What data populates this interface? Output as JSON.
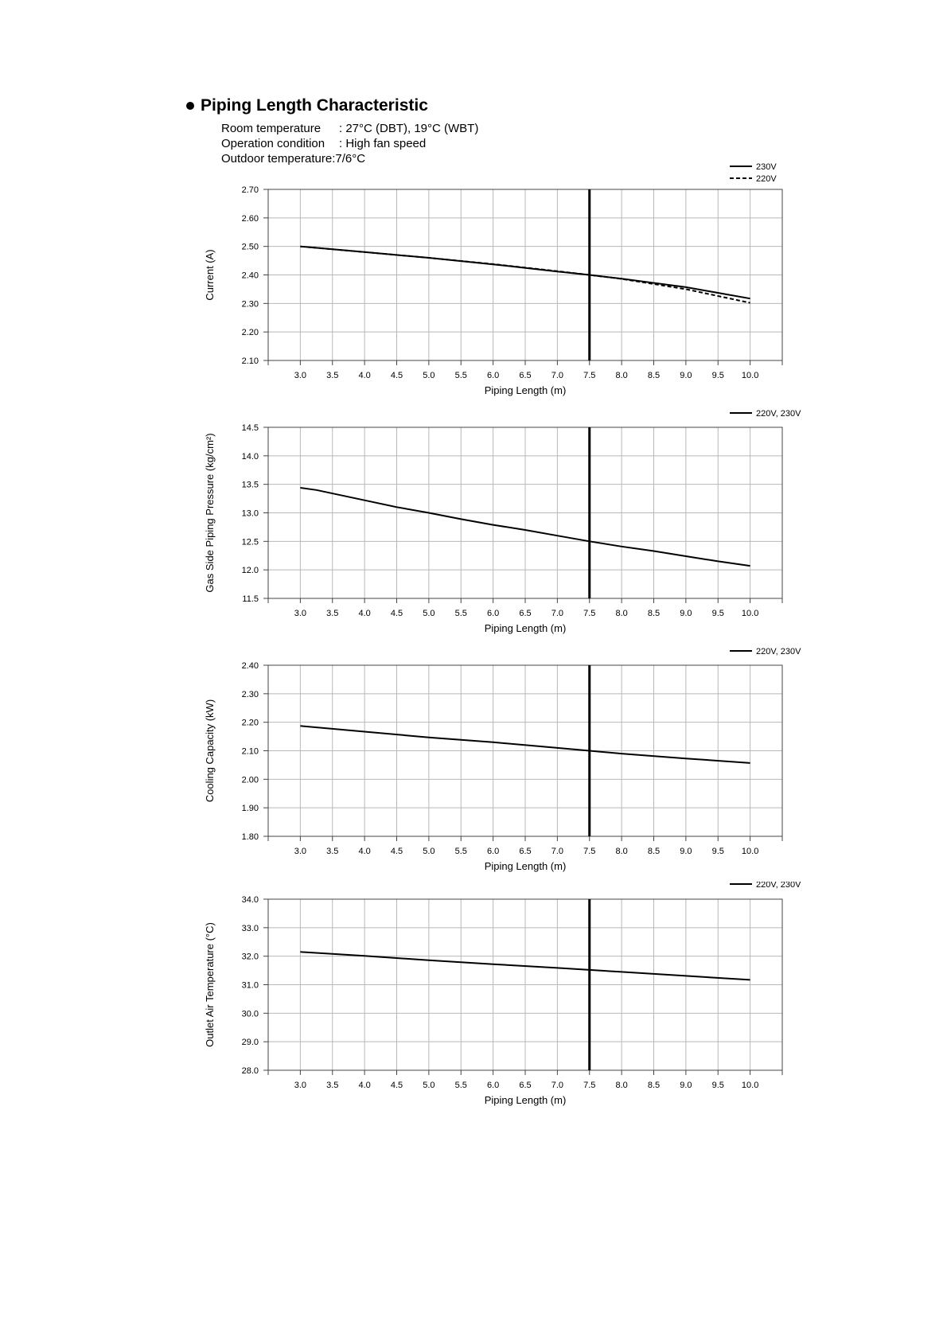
{
  "heading": {
    "title": "Piping Length Characteristic"
  },
  "conditions": [
    {
      "label": "Room temperature",
      "value": ": 27°C (DBT), 19°C (WBT)"
    },
    {
      "label": "Operation condition",
      "value": ": High fan speed"
    },
    {
      "label": "Outdoor temperature:",
      "value": " 7/6°C"
    }
  ],
  "chart_data": [
    {
      "type": "line",
      "title": "",
      "xlabel": "Piping Length (m)",
      "ylabel": "Current (A)",
      "x_ticks": [
        3.0,
        3.5,
        4.0,
        4.5,
        5.0,
        5.5,
        6.0,
        6.5,
        7.0,
        7.5,
        8.0,
        8.5,
        9.0,
        9.5,
        10.0
      ],
      "x_tick_labels": [
        "3.0",
        "3.5",
        "4.0",
        "4.5",
        "5.0",
        "5.5",
        "6.0",
        "6.5",
        "7.0",
        "7.5",
        "8.0",
        "8.5",
        "9.0",
        "9.5",
        "10.0"
      ],
      "xlim": [
        2.5,
        10.5
      ],
      "ylim": [
        2.1,
        2.7
      ],
      "y_ticks": [
        2.1,
        2.2,
        2.3,
        2.4,
        2.5,
        2.6,
        2.7
      ],
      "y_tick_labels": [
        "2.10",
        "2.20",
        "2.30",
        "2.40",
        "2.50",
        "2.60",
        "2.70"
      ],
      "reference_x": 7.5,
      "grid": true,
      "legend_position": "top-right",
      "series": [
        {
          "name": "230V",
          "style": "solid",
          "x": [
            3.0,
            4.0,
            5.0,
            6.0,
            7.0,
            7.5,
            8.0,
            9.0,
            10.0
          ],
          "y": [
            2.5,
            2.48,
            2.46,
            2.437,
            2.412,
            2.4,
            2.387,
            2.357,
            2.317
          ]
        },
        {
          "name": "220V",
          "style": "dashed",
          "x": [
            3.0,
            4.0,
            5.0,
            6.0,
            7.0,
            7.5,
            8.0,
            9.0,
            10.0
          ],
          "y": [
            2.5,
            2.48,
            2.46,
            2.438,
            2.413,
            2.4,
            2.386,
            2.35,
            2.302
          ]
        }
      ]
    },
    {
      "type": "line",
      "title": "",
      "xlabel": "Piping Length (m)",
      "ylabel": "Gas Side Piping Pressure (kg/cm²)",
      "x_ticks": [
        3.0,
        3.5,
        4.0,
        4.5,
        5.0,
        5.5,
        6.0,
        6.5,
        7.0,
        7.5,
        8.0,
        8.5,
        9.0,
        9.5,
        10.0
      ],
      "x_tick_labels": [
        "3.0",
        "3.5",
        "4.0",
        "4.5",
        "5.0",
        "5.5",
        "6.0",
        "6.5",
        "7.0",
        "7.5",
        "8.0",
        "8.5",
        "9.0",
        "9.5",
        "10.0"
      ],
      "xlim": [
        2.5,
        10.5
      ],
      "ylim": [
        11.5,
        14.5
      ],
      "y_ticks": [
        11.5,
        12.0,
        12.5,
        13.0,
        13.5,
        14.0,
        14.5
      ],
      "y_tick_labels": [
        "11.5",
        "12.0",
        "12.5",
        "13.0",
        "13.5",
        "14.0",
        "14.5"
      ],
      "reference_x": 7.5,
      "grid": true,
      "legend_position": "top-right",
      "series": [
        {
          "name": "220V, 230V",
          "style": "solid",
          "x": [
            3.0,
            3.25,
            4.0,
            4.5,
            5.0,
            5.5,
            6.0,
            6.5,
            7.0,
            7.5,
            8.0,
            8.5,
            9.0,
            9.5,
            10.0
          ],
          "y": [
            13.44,
            13.4,
            13.22,
            13.1,
            13.0,
            12.89,
            12.79,
            12.7,
            12.6,
            12.5,
            12.41,
            12.33,
            12.24,
            12.15,
            12.07
          ]
        }
      ]
    },
    {
      "type": "line",
      "title": "",
      "xlabel": "Piping Length (m)",
      "ylabel": "Cooling Capacity (kW)",
      "x_ticks": [
        3.0,
        3.5,
        4.0,
        4.5,
        5.0,
        5.5,
        6.0,
        6.5,
        7.0,
        7.5,
        8.0,
        8.5,
        9.0,
        9.5,
        10.0
      ],
      "x_tick_labels": [
        "3.0",
        "3.5",
        "4.0",
        "4.5",
        "5.0",
        "5.5",
        "6.0",
        "6.5",
        "7.0",
        "7.5",
        "8.0",
        "8.5",
        "9.0",
        "9.5",
        "10.0"
      ],
      "xlim": [
        2.5,
        10.5
      ],
      "ylim": [
        1.8,
        2.4
      ],
      "y_ticks": [
        1.8,
        1.9,
        2.0,
        2.1,
        2.2,
        2.3,
        2.4
      ],
      "y_tick_labels": [
        "1.80",
        "1.90",
        "2.00",
        "2.10",
        "2.20",
        "2.30",
        "2.40"
      ],
      "reference_x": 7.5,
      "grid": true,
      "legend_position": "top-right",
      "series": [
        {
          "name": "220V, 230V",
          "style": "solid",
          "x": [
            3.0,
            4.0,
            5.0,
            6.0,
            7.0,
            7.5,
            8.0,
            9.0,
            10.0
          ],
          "y": [
            2.187,
            2.167,
            2.147,
            2.13,
            2.11,
            2.1,
            2.09,
            2.073,
            2.057
          ]
        }
      ]
    },
    {
      "type": "line",
      "title": "",
      "xlabel": "Piping Length (m)",
      "ylabel": "Outlet Air Temperature (°C)",
      "x_ticks": [
        3.0,
        3.5,
        4.0,
        4.5,
        5.0,
        5.5,
        6.0,
        6.5,
        7.0,
        7.5,
        8.0,
        8.5,
        9.0,
        9.5,
        10.0
      ],
      "x_tick_labels": [
        "3.0",
        "3.5",
        "4.0",
        "4.5",
        "5.0",
        "5.5",
        "6.0",
        "6.5",
        "7.0",
        "7.5",
        "8.0",
        "8.5",
        "9.0",
        "9.5",
        "10.0"
      ],
      "xlim": [
        2.5,
        10.5
      ],
      "ylim": [
        28.0,
        34.0
      ],
      "y_ticks": [
        28.0,
        29.0,
        30.0,
        31.0,
        32.0,
        33.0,
        34.0
      ],
      "y_tick_labels": [
        "28.0",
        "29.0",
        "30.0",
        "31.0",
        "32.0",
        "33.0",
        "34.0"
      ],
      "reference_x": 7.5,
      "grid": true,
      "legend_position": "top-right",
      "series": [
        {
          "name": "220V, 230V",
          "style": "solid",
          "x": [
            3.0,
            4.0,
            5.0,
            6.0,
            7.0,
            7.5,
            8.0,
            9.0,
            10.0
          ],
          "y": [
            32.15,
            32.01,
            31.86,
            31.72,
            31.59,
            31.52,
            31.45,
            31.31,
            31.17
          ]
        }
      ]
    }
  ]
}
